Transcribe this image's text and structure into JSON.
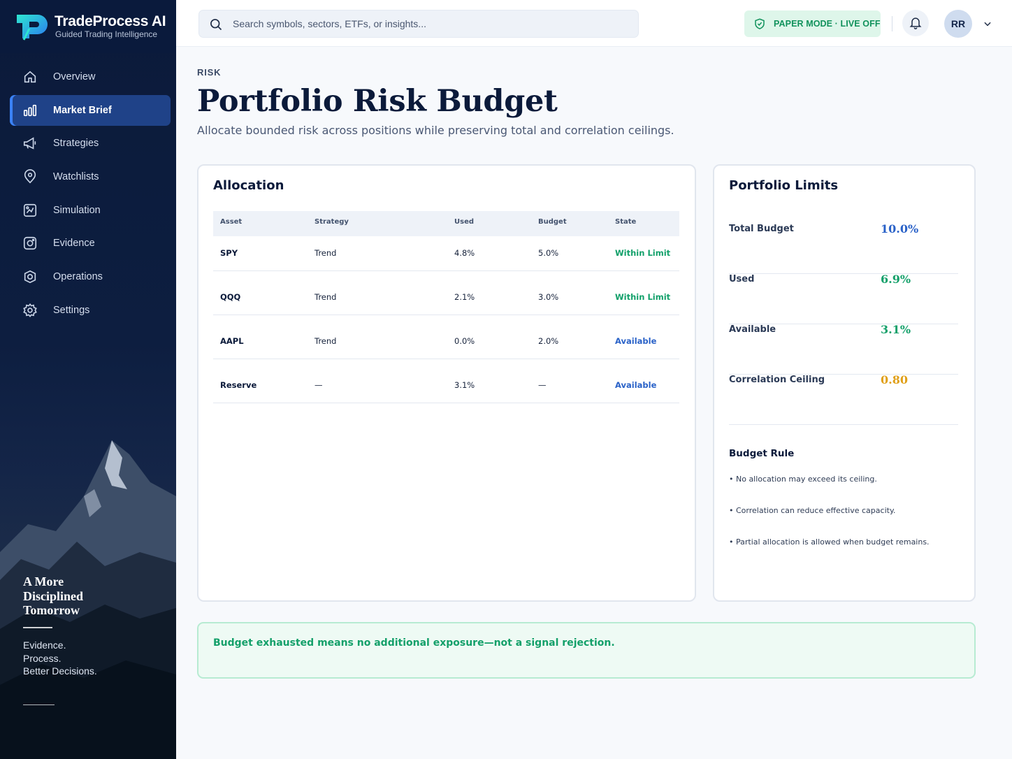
{
  "brand": {
    "name": "TradeProcess AI",
    "tagline": "Guided Trading Intelligence",
    "logo_letter": "P"
  },
  "sidebar": {
    "items": [
      {
        "label": "Overview",
        "icon": "home-icon",
        "active": false
      },
      {
        "label": "Market Brief",
        "icon": "bar-chart-icon",
        "active": true
      },
      {
        "label": "Strategies",
        "icon": "megaphone-icon",
        "active": false
      },
      {
        "label": "Watchlists",
        "icon": "map-pin-icon",
        "active": false
      },
      {
        "label": "Simulation",
        "icon": "chart-square-icon",
        "active": false
      },
      {
        "label": "Evidence",
        "icon": "camera-icon",
        "active": false
      },
      {
        "label": "Operations",
        "icon": "gear-shield-icon",
        "active": false
      },
      {
        "label": "Settings",
        "icon": "gear-icon",
        "active": false
      }
    ],
    "quote": {
      "line1": "A More",
      "line2": "Disciplined",
      "line3": "Tomorrow",
      "sub1": "Evidence.",
      "sub2": "Process.",
      "sub3": "Better Decisions."
    }
  },
  "topbar": {
    "search_placeholder": "Search symbols, sectors, ETFs, or insights...",
    "mode_badge": "PAPER MODE · LIVE OFF",
    "avatar_initials": "RR"
  },
  "header": {
    "eyebrow": "RISK",
    "title": "Portfolio Risk Budget",
    "subtitle": "Allocate bounded risk across positions while preserving total and correlation ceilings."
  },
  "allocation": {
    "title": "Allocation",
    "columns": [
      "Asset",
      "Strategy",
      "Used",
      "Budget",
      "State"
    ],
    "rows": [
      {
        "asset": "SPY",
        "strategy": "Trend",
        "used": "4.8%",
        "budget": "5.0%",
        "state": "Within Limit",
        "state_kind": "within"
      },
      {
        "asset": "QQQ",
        "strategy": "Trend",
        "used": "2.1%",
        "budget": "3.0%",
        "state": "Within Limit",
        "state_kind": "within"
      },
      {
        "asset": "AAPL",
        "strategy": "Trend",
        "used": "0.0%",
        "budget": "2.0%",
        "state": "Available",
        "state_kind": "available"
      },
      {
        "asset": "Reserve",
        "strategy": "—",
        "used": "3.1%",
        "budget": "—",
        "state": "Available",
        "state_kind": "available"
      }
    ]
  },
  "limits": {
    "title": "Portfolio Limits",
    "rows": [
      {
        "label": "Total Budget",
        "value": "10.0%",
        "color": "#2a62c8"
      },
      {
        "label": "Used",
        "value": "6.9%",
        "color": "#14a06a"
      },
      {
        "label": "Available",
        "value": "3.1%",
        "color": "#14a06a"
      },
      {
        "label": "Correlation Ceiling",
        "value": "0.80",
        "color": "#e0a019"
      }
    ],
    "rule_title": "Budget Rule",
    "rules": [
      "• No allocation may exceed its ceiling.",
      "• Correlation can reduce effective capacity.",
      "• Partial allocation is allowed when budget remains."
    ]
  },
  "notice": {
    "text": "Budget exhausted means no additional exposure—not a signal rejection."
  },
  "colors": {
    "accent": "#3b82f6",
    "success": "#14a06a",
    "link": "#2a62c8",
    "warning": "#e0a019",
    "navy": "#0b1a3a"
  }
}
